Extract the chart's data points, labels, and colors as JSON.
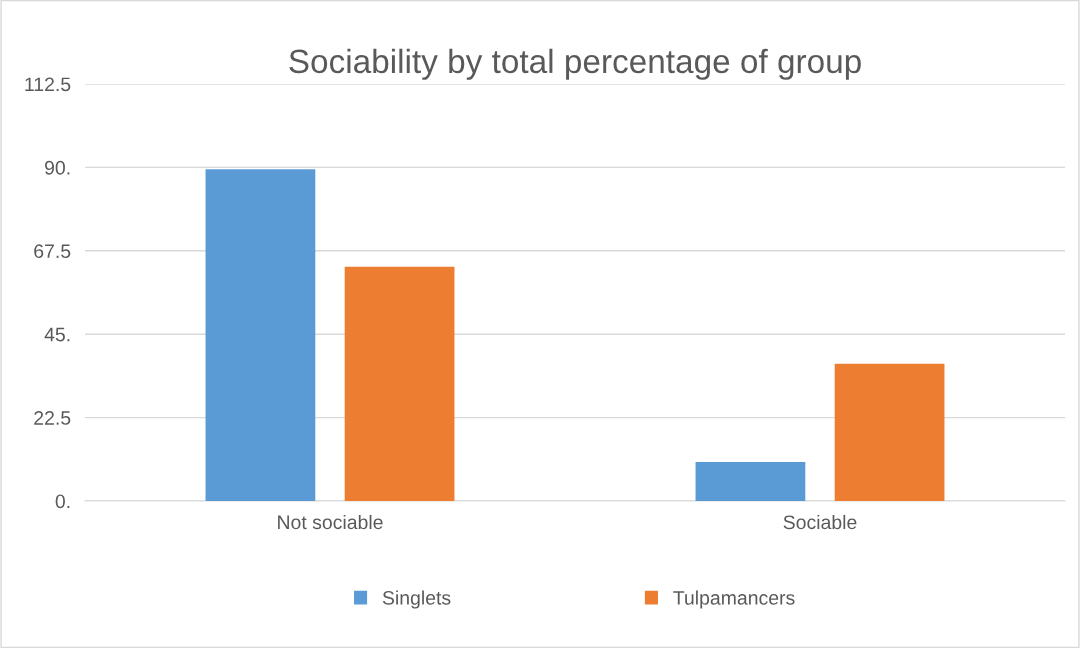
{
  "chart_data": {
    "type": "bar",
    "title": "Sociability by total percentage of group",
    "categories": [
      "Not sociable",
      "Sociable"
    ],
    "series": [
      {
        "name": "Singlets",
        "color": "#5b9bd5",
        "values": [
          89.5,
          10.5
        ]
      },
      {
        "name": "Tulpamancers",
        "color": "#ed7d31",
        "values": [
          63.2,
          37.0
        ]
      }
    ],
    "ylim": [
      0,
      112.5
    ],
    "yticks": [
      {
        "value": 0,
        "label": "0."
      },
      22.5,
      {
        "value": 45,
        "label": "45."
      },
      67.5,
      {
        "value": 90,
        "label": "90."
      },
      112.5
    ],
    "grid": "y",
    "legend": "bottom"
  }
}
